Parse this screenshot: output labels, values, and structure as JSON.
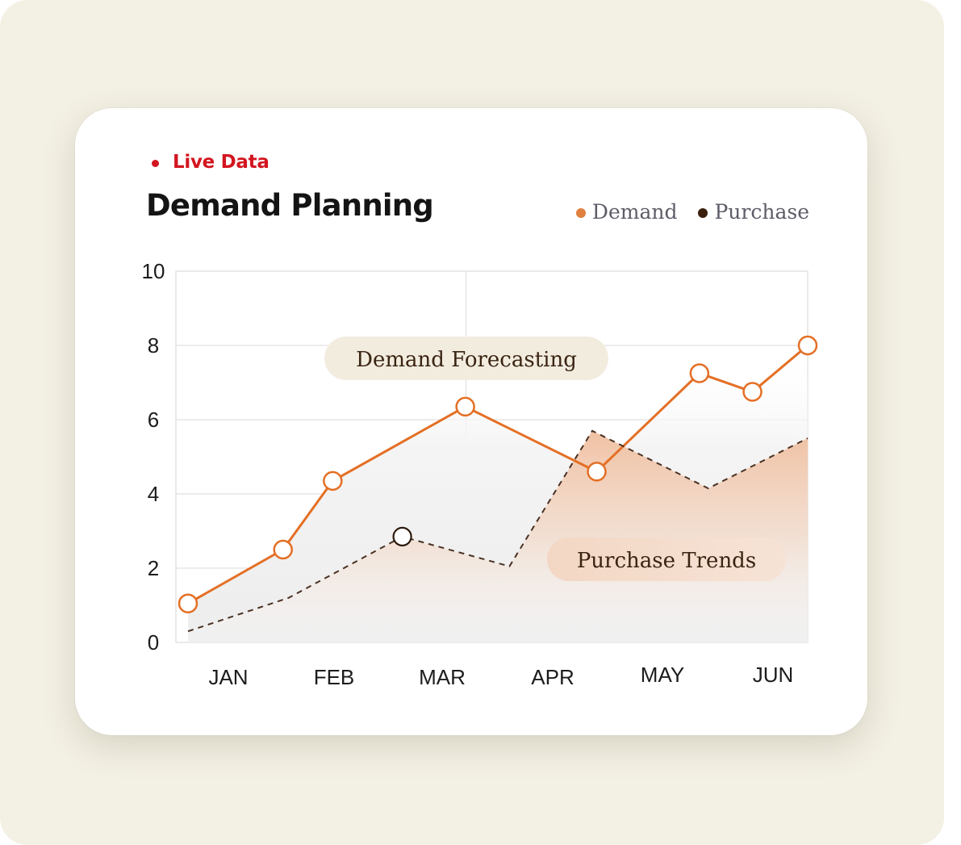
{
  "header": {
    "live_label": "Live Data",
    "title": "Demand Planning"
  },
  "legend": [
    {
      "label": "Demand",
      "color": "#e07f3e"
    },
    {
      "label": "Purchase",
      "color": "#3a1f0c"
    }
  ],
  "annotations": {
    "forecast_label": "Demand Forecasting",
    "trends_label": "Purchase Trends"
  },
  "colors": {
    "live": "#d3151f",
    "demand_line": "#e46f25",
    "purchase_line": "#4a3224",
    "backdrop": "#f3f0e4"
  },
  "chart_data": {
    "type": "line",
    "title": "Demand Planning",
    "xlabel": "",
    "ylabel": "",
    "ylim": [
      0,
      10
    ],
    "yticks": [
      "0",
      "2",
      "4",
      "6",
      "8",
      "10"
    ],
    "xlim": [
      1,
      6
    ],
    "categories": [
      "JAN",
      "FEB",
      "MAR",
      "APR",
      "MAY",
      "JUN"
    ],
    "grid": true,
    "legend_position": "top-right",
    "series": [
      {
        "name": "Demand",
        "x": [
          0.69,
          1.55,
          2.0,
          3.2,
          4.39,
          5.32,
          5.8,
          6.3
        ],
        "values": [
          1.05,
          2.5,
          4.35,
          6.35,
          4.6,
          7.25,
          6.75,
          8.0
        ],
        "markers": true
      },
      {
        "name": "Purchase",
        "x": [
          0.69,
          1.6,
          2.63,
          3.6,
          4.35,
          5.4,
          6.3
        ],
        "values": [
          0.3,
          1.2,
          2.85,
          2.05,
          5.7,
          4.15,
          5.5
        ],
        "markers": [
          false,
          false,
          true,
          false,
          false,
          false,
          false
        ]
      }
    ]
  }
}
